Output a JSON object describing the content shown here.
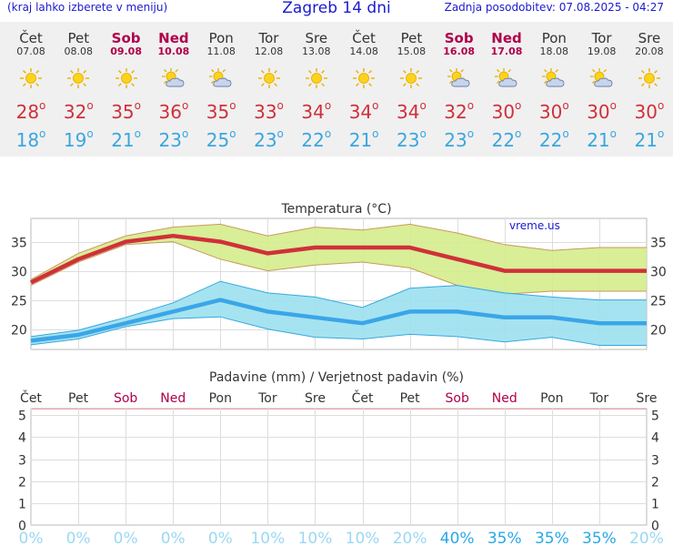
{
  "header": {
    "left_note": "(kraj lahko izberete v meniju)",
    "title": "Zagreb 14 dni",
    "updated": "Zadnja posodobitev: 07.08.2025 - 04:27"
  },
  "colors": {
    "header_text": "#1a1ad0",
    "weekend": "#b0004a",
    "tmax": "#d0303a",
    "tmin": "#3aa6e0",
    "max_band": "#d4ec8c",
    "min_band": "#9ce0ee",
    "min_line": "#3aa6e8",
    "precip_label": "#9bd8f2",
    "precip_label_strong": "#2aa8e8"
  },
  "days": [
    {
      "name": "Čet",
      "date": "07.08",
      "weekend": false,
      "icon": "sun-icon",
      "tmax": "28",
      "tmin": "18"
    },
    {
      "name": "Pet",
      "date": "08.08",
      "weekend": false,
      "icon": "sun-icon",
      "tmax": "32",
      "tmin": "19"
    },
    {
      "name": "Sob",
      "date": "09.08",
      "weekend": true,
      "icon": "sun-icon",
      "tmax": "35",
      "tmin": "21"
    },
    {
      "name": "Ned",
      "date": "10.08",
      "weekend": true,
      "icon": "sun-cloud-icon",
      "tmax": "36",
      "tmin": "23"
    },
    {
      "name": "Pon",
      "date": "11.08",
      "weekend": false,
      "icon": "sun-cloud-icon",
      "tmax": "35",
      "tmin": "25"
    },
    {
      "name": "Tor",
      "date": "12.08",
      "weekend": false,
      "icon": "sun-icon",
      "tmax": "33",
      "tmin": "23"
    },
    {
      "name": "Sre",
      "date": "13.08",
      "weekend": false,
      "icon": "sun-icon",
      "tmax": "34",
      "tmin": "22"
    },
    {
      "name": "Čet",
      "date": "14.08",
      "weekend": false,
      "icon": "sun-icon",
      "tmax": "34",
      "tmin": "21"
    },
    {
      "name": "Pet",
      "date": "15.08",
      "weekend": false,
      "icon": "sun-icon",
      "tmax": "34",
      "tmin": "23"
    },
    {
      "name": "Sob",
      "date": "16.08",
      "weekend": true,
      "icon": "sun-cloud-icon",
      "tmax": "32",
      "tmin": "23"
    },
    {
      "name": "Ned",
      "date": "17.08",
      "weekend": true,
      "icon": "sun-cloud-icon",
      "tmax": "30",
      "tmin": "22"
    },
    {
      "name": "Pon",
      "date": "18.08",
      "weekend": false,
      "icon": "sun-cloud-icon",
      "tmax": "30",
      "tmin": "22"
    },
    {
      "name": "Tor",
      "date": "19.08",
      "weekend": false,
      "icon": "sun-cloud-icon",
      "tmax": "30",
      "tmin": "21"
    },
    {
      "name": "Sre",
      "date": "20.08",
      "weekend": false,
      "icon": "sun-icon",
      "tmax": "30",
      "tmin": "21"
    }
  ],
  "chart_data": [
    {
      "type": "line",
      "title": "Temperatura (°C)",
      "watermark": "vreme.us",
      "categories": [
        "Čet",
        "Pet",
        "Sob",
        "Ned",
        "Pon",
        "Tor",
        "Sre",
        "Čet",
        "Pet",
        "Sob",
        "Ned",
        "Pon",
        "Tor",
        "Sre"
      ],
      "ylim": [
        16.5,
        39
      ],
      "yticks": [
        "20",
        "25",
        "30",
        "35"
      ],
      "grid": true,
      "series": [
        {
          "values": [
            28,
            32,
            35,
            36,
            35,
            33,
            34,
            34,
            34,
            32,
            30,
            30,
            30,
            30
          ]
        },
        {
          "values": [
            18,
            19,
            21,
            23,
            25,
            23,
            22,
            21,
            23,
            23,
            22,
            22,
            21,
            21
          ]
        }
      ],
      "bands": [
        {
          "upper": [
            28.5,
            33,
            36,
            37.5,
            38,
            36,
            37.5,
            37,
            38,
            36.5,
            34.5,
            33.5,
            34,
            34
          ],
          "lower": [
            27.5,
            31.5,
            34.5,
            35,
            32,
            30,
            31,
            31.5,
            30.5,
            27.5,
            26,
            26.5,
            26.5,
            26.5
          ]
        },
        {
          "upper": [
            18.7,
            19.8,
            22,
            24.5,
            28.2,
            26.2,
            25.5,
            23.7,
            27,
            27.5,
            26.2,
            25.5,
            25,
            25
          ],
          "lower": [
            17.3,
            18.3,
            20.4,
            21.8,
            22.1,
            20,
            18.6,
            18.3,
            19.1,
            18.7,
            17.8,
            18.6,
            17.2,
            17.2
          ]
        }
      ]
    },
    {
      "type": "bar",
      "title": "Padavine (mm) / Verjetnost padavin (%)",
      "categories": [
        "Čet",
        "Pet",
        "Sob",
        "Ned",
        "Pon",
        "Tor",
        "Sre",
        "Čet",
        "Pet",
        "Sob",
        "Ned",
        "Pon",
        "Tor",
        "Sre"
      ],
      "weekend": [
        false,
        false,
        true,
        true,
        false,
        false,
        false,
        false,
        false,
        true,
        true,
        false,
        false,
        false
      ],
      "ylim": [
        0,
        5.3
      ],
      "yticks": [
        "0",
        "1",
        "2",
        "3",
        "4",
        "5"
      ],
      "values": [
        0,
        0,
        0,
        0,
        0,
        0,
        0,
        0,
        0,
        0,
        0,
        0,
        0,
        0
      ],
      "probability": [
        "0%",
        "0%",
        "0%",
        "0%",
        "0%",
        "10%",
        "10%",
        "10%",
        "20%",
        "40%",
        "35%",
        "35%",
        "35%",
        "20%"
      ]
    }
  ]
}
